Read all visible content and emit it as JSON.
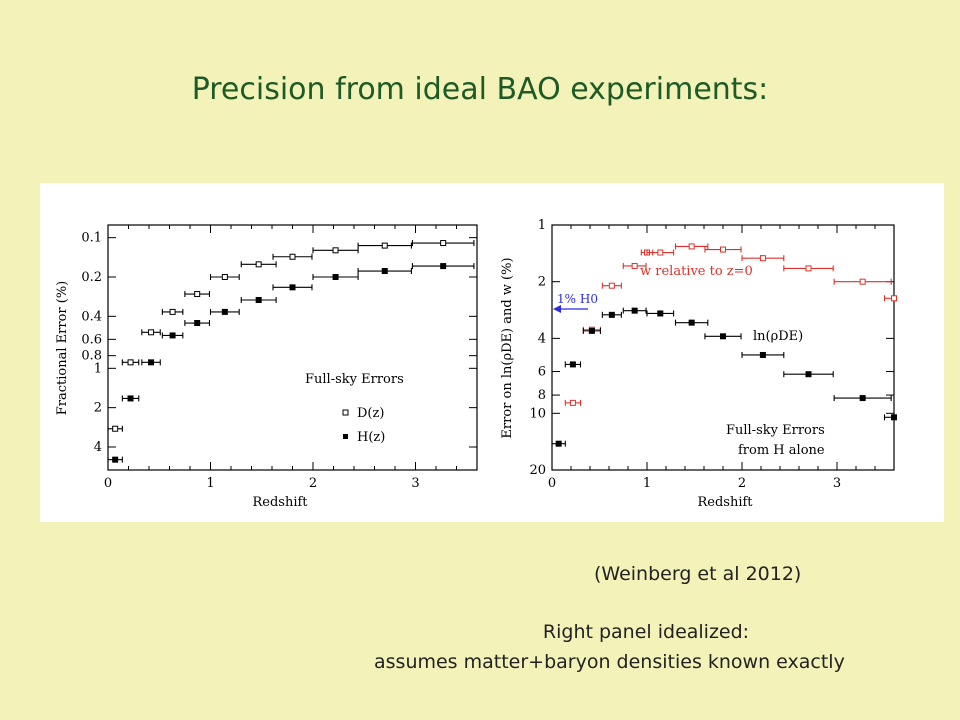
{
  "slide": {
    "title": "Precision from ideal BAO experiments:",
    "citation": "(Weinberg et al 2012)",
    "note_line1": "Right panel idealized:",
    "note_line2": "assumes matter+baryon  densities  known exactly",
    "colors": {
      "background": "#f3f3b9",
      "title": "#1d5a25",
      "red": "#e0302a",
      "blue": "#2b2be0"
    }
  },
  "chart_data": [
    {
      "type": "scatter",
      "panel": "left",
      "xlabel": "Redshift",
      "ylabel": "Fractional Error  (%)",
      "xlim": [
        0,
        3.6
      ],
      "ylim_log": [
        0.08,
        6
      ],
      "y_inverted": true,
      "x_ticks": [
        "0",
        "1",
        "2",
        "3"
      ],
      "y_ticks": [
        "0.1",
        "0.2",
        "0.4",
        "0.6",
        "0.8",
        "1",
        "2",
        "4"
      ],
      "legend_title": "Full-sky Errors",
      "legend_loc": "lower right",
      "series": [
        {
          "name": "D(z)",
          "marker": "open-square",
          "points": [
            {
              "x": 0.07,
              "xerr": 0.07,
              "y": 2.9
            },
            {
              "x": 0.22,
              "xerr": 0.08,
              "y": 0.9
            },
            {
              "x": 0.42,
              "xerr": 0.09,
              "y": 0.53
            },
            {
              "x": 0.63,
              "xerr": 0.1,
              "y": 0.37
            },
            {
              "x": 0.87,
              "xerr": 0.12,
              "y": 0.27
            },
            {
              "x": 1.14,
              "xerr": 0.14,
              "y": 0.2
            },
            {
              "x": 1.47,
              "xerr": 0.17,
              "y": 0.16
            },
            {
              "x": 1.8,
              "xerr": 0.19,
              "y": 0.14
            },
            {
              "x": 2.22,
              "xerr": 0.22,
              "y": 0.125
            },
            {
              "x": 2.7,
              "xerr": 0.26,
              "y": 0.115
            },
            {
              "x": 3.27,
              "xerr": 0.3,
              "y": 0.11
            }
          ]
        },
        {
          "name": "H(z)",
          "marker": "filled-square",
          "points": [
            {
              "x": 0.07,
              "xerr": 0.07,
              "y": 5.0
            },
            {
              "x": 0.22,
              "xerr": 0.08,
              "y": 1.7
            },
            {
              "x": 0.42,
              "xerr": 0.09,
              "y": 0.9
            },
            {
              "x": 0.63,
              "xerr": 0.1,
              "y": 0.56
            },
            {
              "x": 0.87,
              "xerr": 0.12,
              "y": 0.45
            },
            {
              "x": 1.14,
              "xerr": 0.14,
              "y": 0.37
            },
            {
              "x": 1.47,
              "xerr": 0.17,
              "y": 0.3
            },
            {
              "x": 1.8,
              "xerr": 0.19,
              "y": 0.24
            },
            {
              "x": 2.22,
              "xerr": 0.22,
              "y": 0.2
            },
            {
              "x": 2.7,
              "xerr": 0.26,
              "y": 0.18
            },
            {
              "x": 3.27,
              "xerr": 0.3,
              "y": 0.165
            }
          ]
        }
      ]
    },
    {
      "type": "scatter",
      "panel": "right",
      "xlabel": "Redshift",
      "ylabel": "Error on ln(ρDE) and w (%)",
      "xlim": [
        0,
        3.6
      ],
      "ylim_log": [
        1,
        20
      ],
      "y_inverted": true,
      "x_ticks": [
        "0",
        "1",
        "2",
        "3"
      ],
      "y_ticks": [
        "1",
        "2",
        "4",
        "6",
        "8",
        "10",
        "20"
      ],
      "annotations": [
        "w relative to z=0",
        "ln(ρDE)",
        "1% H0",
        "Full-sky Errors",
        "from H alone"
      ],
      "series": [
        {
          "name": "w relative to z=0",
          "color": "#e0302a",
          "marker": "open-square",
          "points": [
            {
              "x": 0.22,
              "xerr": 0.08,
              "y": 8.8
            },
            {
              "x": 0.42,
              "xerr": 0.09,
              "y": 3.6
            },
            {
              "x": 0.63,
              "xerr": 0.1,
              "y": 2.1
            },
            {
              "x": 0.87,
              "xerr": 0.12,
              "y": 1.65
            },
            {
              "x": 1.0,
              "xerr": 0.06,
              "y": 1.4
            },
            {
              "x": 1.14,
              "xerr": 0.14,
              "y": 1.4
            },
            {
              "x": 1.47,
              "xerr": 0.17,
              "y": 1.3
            },
            {
              "x": 1.8,
              "xerr": 0.19,
              "y": 1.35
            },
            {
              "x": 2.22,
              "xerr": 0.22,
              "y": 1.5
            },
            {
              "x": 2.7,
              "xerr": 0.26,
              "y": 1.7
            },
            {
              "x": 3.27,
              "xerr": 0.3,
              "y": 2.0
            },
            {
              "x": 3.6,
              "xerr": 0.1,
              "y": 2.45
            }
          ]
        },
        {
          "name": "ln(ρDE)",
          "color": "#000000",
          "marker": "filled-square",
          "points": [
            {
              "x": 0.07,
              "xerr": 0.07,
              "y": 14.5
            },
            {
              "x": 0.22,
              "xerr": 0.08,
              "y": 5.5
            },
            {
              "x": 0.42,
              "xerr": 0.09,
              "y": 3.65
            },
            {
              "x": 0.63,
              "xerr": 0.1,
              "y": 3.0
            },
            {
              "x": 0.87,
              "xerr": 0.12,
              "y": 2.85
            },
            {
              "x": 1.14,
              "xerr": 0.14,
              "y": 2.95
            },
            {
              "x": 1.47,
              "xerr": 0.17,
              "y": 3.3
            },
            {
              "x": 1.8,
              "xerr": 0.19,
              "y": 3.9
            },
            {
              "x": 2.22,
              "xerr": 0.22,
              "y": 4.9
            },
            {
              "x": 2.7,
              "xerr": 0.26,
              "y": 6.2
            },
            {
              "x": 3.27,
              "xerr": 0.3,
              "y": 8.3
            },
            {
              "x": 3.6,
              "xerr": 0.1,
              "y": 10.5
            }
          ]
        }
      ]
    }
  ]
}
